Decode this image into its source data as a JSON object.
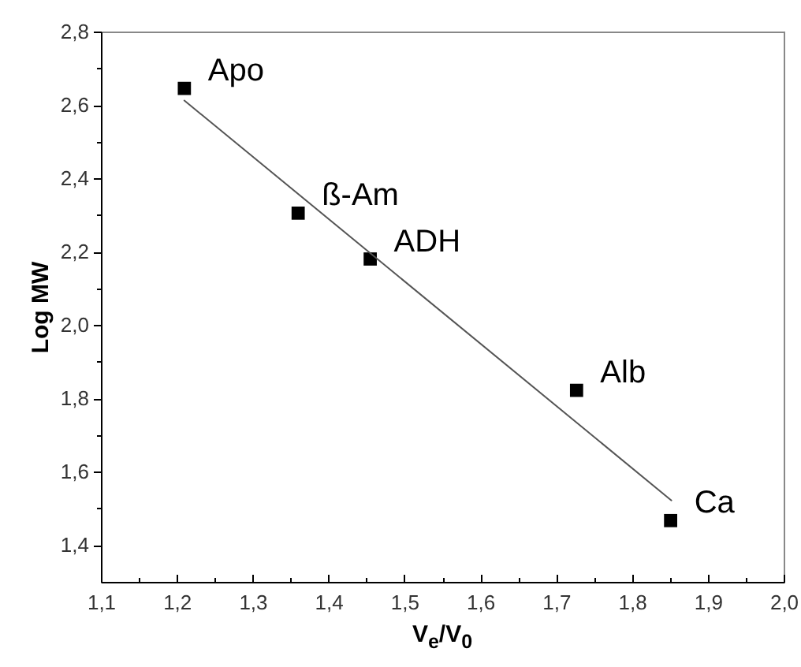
{
  "chart_data": {
    "type": "scatter",
    "xlabel": "V$_{e}$/V$_{0}$",
    "ylabel": "Log MW",
    "series": [
      {
        "color": "#000000",
        "marker": "square",
        "x": [
          1.21,
          1.36,
          1.455,
          1.727,
          1.851
        ],
        "values": [
          2.645,
          2.305,
          2.18,
          1.822,
          1.467
        ]
      },
      {
        "type": "line",
        "color": "#555555",
        "marker": "none",
        "x": [
          1.21,
          1.852
        ],
        "values": [
          2.612,
          1.522
        ]
      }
    ],
    "annotations": [
      {
        "text": "Apo",
        "x": 1.21,
        "y": 2.645
      },
      {
        "text": "ß-Am",
        "x": 1.36,
        "y": 2.305
      },
      {
        "text": "ADH",
        "x": 1.455,
        "y": 2.18
      },
      {
        "text": "Alb",
        "x": 1.727,
        "y": 1.822
      },
      {
        "text": "Ca",
        "x": 1.851,
        "y": 1.467
      }
    ],
    "xlim": [
      1.1,
      2.0
    ],
    "xticks": [
      {
        "value": 1.1,
        "label": "1,1"
      },
      {
        "value": 1.15,
        "label": null
      },
      {
        "value": 1.2,
        "label": "1,2"
      },
      {
        "value": 1.25,
        "label": null
      },
      {
        "value": 1.3,
        "label": "1,3"
      },
      {
        "value": 1.35,
        "label": null
      },
      {
        "value": 1.4,
        "label": "1,4"
      },
      {
        "value": 1.45,
        "label": null
      },
      {
        "value": 1.5,
        "label": "1,5"
      },
      {
        "value": 1.55,
        "label": null
      },
      {
        "value": 1.6,
        "label": "1,6"
      },
      {
        "value": 1.65,
        "label": null
      },
      {
        "value": 1.7,
        "label": "1,7"
      },
      {
        "value": 1.75,
        "label": null
      },
      {
        "value": 1.8,
        "label": "1,8"
      },
      {
        "value": 1.85,
        "label": null
      },
      {
        "value": 1.9,
        "label": "1,9"
      },
      {
        "value": 1.95,
        "label": null
      },
      {
        "value": 2.0,
        "label": "2,0"
      }
    ],
    "ylim": [
      1.3,
      2.8
    ],
    "yticks": [
      {
        "value": 1.4,
        "label": "1,4"
      },
      {
        "value": 1.5,
        "label": null
      },
      {
        "value": 1.6,
        "label": "1,6"
      },
      {
        "value": 1.7,
        "label": null
      },
      {
        "value": 1.8,
        "label": "1,8"
      },
      {
        "value": 1.9,
        "label": null
      },
      {
        "value": 2.0,
        "label": "2,0"
      },
      {
        "value": 2.1,
        "label": null
      },
      {
        "value": 2.2,
        "label": "2,2"
      },
      {
        "value": 2.3,
        "label": null
      },
      {
        "value": 2.4,
        "label": "2,4"
      },
      {
        "value": 2.5,
        "label": null
      },
      {
        "value": 2.6,
        "label": "2,6"
      },
      {
        "value": 2.7,
        "label": null
      },
      {
        "value": 2.8,
        "label": "2,8"
      }
    ]
  }
}
